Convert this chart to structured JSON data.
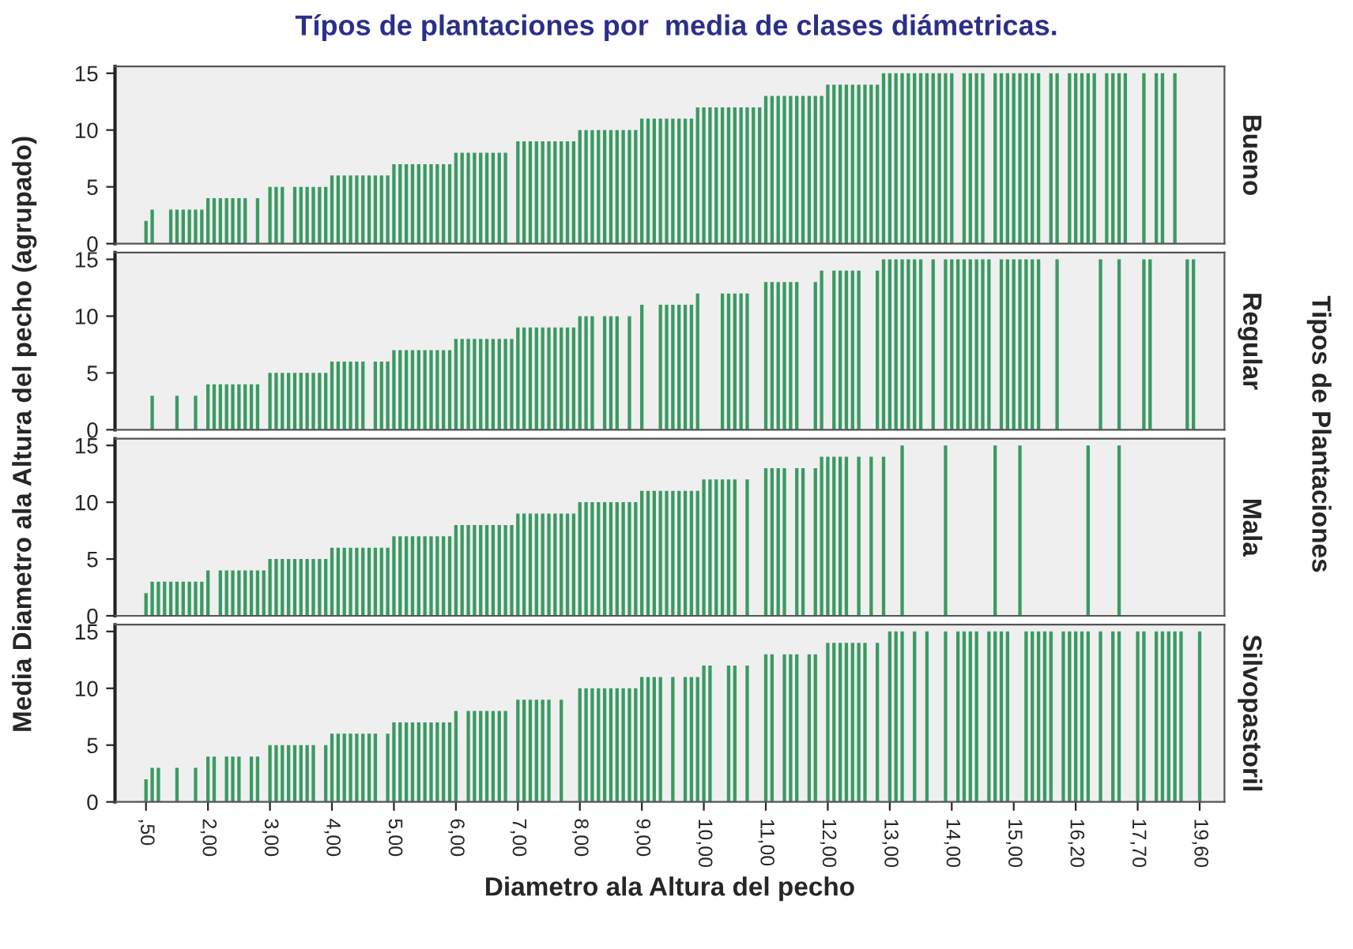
{
  "chart_data": [
    {
      "type": "bar",
      "title": "Típos de plantaciones por  media de clases diámetricas.",
      "ylabel": "Media Diametro ala Altura del pecho (agrupado)",
      "y2label": "Tipos de Plantaciones",
      "annotations": [
        "Bueno"
      ],
      "tick_labels": "y",
      "color": "#3a9a63",
      "ylim": [
        0,
        15.6
      ],
      "yticks": [
        0,
        5,
        10,
        15
      ],
      "grid": false,
      "categories": [
        ",50",
        null,
        null,
        null,
        null,
        null,
        null,
        null,
        null,
        null,
        "2,00",
        null,
        null,
        null,
        null,
        null,
        null,
        null,
        null,
        null,
        "3,00",
        null,
        null,
        null,
        null,
        null,
        null,
        null,
        null,
        null,
        "4,00",
        null,
        null,
        null,
        null,
        null,
        null,
        null,
        null,
        null,
        "5,00",
        null,
        null,
        null,
        null,
        null,
        null,
        null,
        null,
        null,
        "6,00",
        null,
        null,
        null,
        null,
        null,
        null,
        null,
        null,
        null,
        "7,00",
        null,
        null,
        null,
        null,
        null,
        null,
        null,
        null,
        null,
        "8,00",
        null,
        null,
        null,
        null,
        null,
        null,
        null,
        null,
        null,
        "9,00",
        null,
        null,
        null,
        null,
        null,
        null,
        null,
        null,
        null,
        "10,00",
        null,
        null,
        null,
        null,
        null,
        null,
        null,
        null,
        null,
        "11,00",
        null,
        null,
        null,
        null,
        null,
        null,
        null,
        null,
        null,
        "12,00",
        null,
        null,
        null,
        null,
        null,
        null,
        null,
        null,
        null,
        "13,00",
        null,
        null,
        null,
        null,
        null,
        null,
        null,
        null,
        null,
        "14,00",
        null,
        null,
        null,
        null,
        null,
        null,
        null,
        null,
        null,
        "15,00",
        null,
        null,
        null,
        null,
        null,
        null,
        null,
        null,
        null,
        "16,20",
        null,
        null,
        null,
        null,
        null,
        null,
        null,
        null,
        null,
        "17,70",
        null,
        null,
        null,
        null,
        null,
        null,
        null,
        null,
        null,
        "19,60"
      ],
      "values": [
        2,
        3,
        null,
        null,
        3,
        3,
        3,
        3,
        3,
        3,
        4,
        4,
        4,
        4,
        4,
        4,
        4,
        null,
        4,
        null,
        5,
        5,
        5,
        null,
        5,
        5,
        5,
        5,
        5,
        5,
        6,
        6,
        6,
        6,
        6,
        6,
        6,
        6,
        6,
        6,
        7,
        7,
        7,
        7,
        7,
        7,
        7,
        7,
        7,
        7,
        8,
        8,
        8,
        8,
        8,
        8,
        8,
        8,
        8,
        null,
        9,
        9,
        9,
        9,
        9,
        9,
        9,
        9,
        9,
        9,
        10,
        10,
        10,
        10,
        10,
        10,
        10,
        10,
        10,
        10,
        11,
        11,
        11,
        11,
        11,
        11,
        11,
        11,
        11,
        12,
        12,
        12,
        12,
        12,
        12,
        12,
        12,
        12,
        12,
        12,
        13,
        13,
        13,
        13,
        13,
        13,
        13,
        13,
        13,
        13,
        14,
        14,
        14,
        14,
        14,
        14,
        14,
        14,
        14,
        15,
        15,
        15,
        15,
        15,
        15,
        15,
        15,
        15,
        15,
        15,
        15,
        null,
        15,
        15,
        15,
        15,
        null,
        15,
        15,
        15,
        15,
        15,
        15,
        15,
        15,
        null,
        15,
        15,
        null,
        15,
        15,
        15,
        15,
        15,
        null,
        15,
        15,
        15,
        15,
        null,
        null,
        15,
        null,
        15,
        15,
        null,
        15,
        null,
        null,
        null,
        null
      ]
    },
    {
      "type": "bar",
      "annotations": [
        "Regular"
      ],
      "tick_labels": "y",
      "color": "#3a9a63",
      "ylim": [
        0,
        15.6
      ],
      "yticks": [
        0,
        5,
        10,
        15
      ],
      "grid": false,
      "categories": [
        ",50",
        null,
        null,
        null,
        null,
        null,
        null,
        null,
        null,
        null,
        "2,00",
        null,
        null,
        null,
        null,
        null,
        null,
        null,
        null,
        null,
        "3,00",
        null,
        null,
        null,
        null,
        null,
        null,
        null,
        null,
        null,
        "4,00",
        null,
        null,
        null,
        null,
        null,
        null,
        null,
        null,
        null,
        "5,00",
        null,
        null,
        null,
        null,
        null,
        null,
        null,
        null,
        null,
        "6,00",
        null,
        null,
        null,
        null,
        null,
        null,
        null,
        null,
        null,
        "7,00",
        null,
        null,
        null,
        null,
        null,
        null,
        null,
        null,
        null,
        "8,00",
        null,
        null,
        null,
        null,
        null,
        null,
        null,
        null,
        null,
        "9,00",
        null,
        null,
        null,
        null,
        null,
        null,
        null,
        null,
        null,
        "10,00",
        null,
        null,
        null,
        null,
        null,
        null,
        null,
        null,
        null,
        "11,00",
        null,
        null,
        null,
        null,
        null,
        null,
        null,
        null,
        null,
        "12,00",
        null,
        null,
        null,
        null,
        null,
        null,
        null,
        null,
        null,
        "13,00",
        null,
        null,
        null,
        null,
        null,
        null,
        null,
        null,
        null,
        "14,00",
        null,
        null,
        null,
        null,
        null,
        null,
        null,
        null,
        null,
        "15,00",
        null,
        null,
        null,
        null,
        null,
        null,
        null,
        null,
        null,
        "16,20",
        null,
        null,
        null,
        null,
        null,
        null,
        null,
        null,
        null,
        "17,70",
        null,
        null,
        null,
        null,
        null,
        null,
        null,
        null,
        null,
        "19,60"
      ],
      "values": [
        null,
        3,
        null,
        null,
        null,
        3,
        null,
        null,
        3,
        null,
        4,
        4,
        4,
        4,
        4,
        4,
        4,
        4,
        4,
        null,
        5,
        5,
        5,
        5,
        5,
        5,
        5,
        5,
        5,
        5,
        6,
        6,
        6,
        6,
        6,
        6,
        null,
        6,
        6,
        6,
        7,
        7,
        7,
        7,
        7,
        7,
        7,
        7,
        7,
        7,
        8,
        8,
        8,
        8,
        8,
        8,
        8,
        8,
        8,
        8,
        9,
        9,
        9,
        9,
        9,
        9,
        9,
        9,
        9,
        9,
        10,
        10,
        10,
        null,
        10,
        10,
        10,
        null,
        10,
        null,
        11,
        null,
        null,
        11,
        11,
        11,
        11,
        11,
        11,
        12,
        null,
        null,
        null,
        12,
        12,
        12,
        12,
        12,
        null,
        null,
        13,
        13,
        13,
        13,
        13,
        13,
        null,
        null,
        13,
        14,
        null,
        14,
        14,
        14,
        14,
        14,
        null,
        null,
        14,
        15,
        15,
        15,
        15,
        15,
        15,
        15,
        null,
        15,
        null,
        15,
        15,
        15,
        15,
        15,
        15,
        15,
        15,
        null,
        15,
        15,
        15,
        15,
        15,
        15,
        15,
        null,
        null,
        15,
        null,
        null,
        null,
        null,
        null,
        null,
        15,
        null,
        null,
        15,
        null,
        null,
        null,
        15,
        15,
        null,
        null,
        null,
        null,
        null,
        15,
        15,
        null
      ]
    },
    {
      "type": "bar",
      "annotations": [
        "Mala"
      ],
      "tick_labels": "y",
      "color": "#3a9a63",
      "ylim": [
        0,
        15.6
      ],
      "yticks": [
        0,
        5,
        10,
        15
      ],
      "grid": false,
      "categories": [
        ",50",
        null,
        null,
        null,
        null,
        null,
        null,
        null,
        null,
        null,
        "2,00",
        null,
        null,
        null,
        null,
        null,
        null,
        null,
        null,
        null,
        "3,00",
        null,
        null,
        null,
        null,
        null,
        null,
        null,
        null,
        null,
        "4,00",
        null,
        null,
        null,
        null,
        null,
        null,
        null,
        null,
        null,
        "5,00",
        null,
        null,
        null,
        null,
        null,
        null,
        null,
        null,
        null,
        "6,00",
        null,
        null,
        null,
        null,
        null,
        null,
        null,
        null,
        null,
        "7,00",
        null,
        null,
        null,
        null,
        null,
        null,
        null,
        null,
        null,
        "8,00",
        null,
        null,
        null,
        null,
        null,
        null,
        null,
        null,
        null,
        "9,00",
        null,
        null,
        null,
        null,
        null,
        null,
        null,
        null,
        null,
        "10,00",
        null,
        null,
        null,
        null,
        null,
        null,
        null,
        null,
        null,
        "11,00",
        null,
        null,
        null,
        null,
        null,
        null,
        null,
        null,
        null,
        "12,00",
        null,
        null,
        null,
        null,
        null,
        null,
        null,
        null,
        null,
        "13,00",
        null,
        null,
        null,
        null,
        null,
        null,
        null,
        null,
        null,
        "14,00",
        null,
        null,
        null,
        null,
        null,
        null,
        null,
        null,
        null,
        "15,00",
        null,
        null,
        null,
        null,
        null,
        null,
        null,
        null,
        null,
        "16,20",
        null,
        null,
        null,
        null,
        null,
        null,
        null,
        null,
        null,
        "17,70",
        null,
        null,
        null,
        null,
        null,
        null,
        null,
        null,
        null,
        "19,60"
      ],
      "values": [
        2,
        3,
        3,
        3,
        3,
        3,
        3,
        3,
        3,
        3,
        4,
        null,
        4,
        4,
        4,
        4,
        4,
        4,
        4,
        4,
        5,
        5,
        5,
        5,
        5,
        5,
        5,
        5,
        5,
        5,
        6,
        6,
        6,
        6,
        6,
        6,
        6,
        6,
        6,
        6,
        7,
        7,
        7,
        7,
        7,
        7,
        7,
        7,
        7,
        7,
        8,
        8,
        8,
        8,
        8,
        8,
        8,
        8,
        8,
        8,
        9,
        9,
        9,
        9,
        9,
        9,
        9,
        9,
        9,
        9,
        10,
        10,
        10,
        10,
        10,
        10,
        10,
        10,
        10,
        10,
        11,
        11,
        11,
        11,
        11,
        11,
        11,
        11,
        11,
        11,
        12,
        12,
        12,
        12,
        12,
        12,
        null,
        12,
        null,
        null,
        13,
        13,
        13,
        13,
        null,
        13,
        13,
        null,
        13,
        14,
        14,
        14,
        14,
        14,
        null,
        14,
        null,
        14,
        null,
        14,
        null,
        null,
        15,
        null,
        null,
        null,
        null,
        null,
        null,
        15,
        null,
        null,
        null,
        null,
        null,
        null,
        null,
        15,
        null,
        null,
        null,
        15,
        null,
        null,
        null,
        null,
        null,
        null,
        null,
        null,
        null,
        null,
        15,
        null,
        null,
        null,
        null,
        15,
        null,
        null,
        null,
        null,
        null,
        null,
        null,
        null,
        null,
        null,
        null,
        null,
        null
      ]
    },
    {
      "type": "bar",
      "xlabel": "Diametro ala Altura del pecho",
      "annotations": [
        "Silvopastoril"
      ],
      "color": "#3a9a63",
      "ylim": [
        0,
        15.6
      ],
      "yticks": [
        0,
        5,
        10,
        15
      ],
      "grid": false,
      "categories": [
        ",50",
        null,
        null,
        null,
        null,
        null,
        null,
        null,
        null,
        null,
        "2,00",
        null,
        null,
        null,
        null,
        null,
        null,
        null,
        null,
        null,
        "3,00",
        null,
        null,
        null,
        null,
        null,
        null,
        null,
        null,
        null,
        "4,00",
        null,
        null,
        null,
        null,
        null,
        null,
        null,
        null,
        null,
        "5,00",
        null,
        null,
        null,
        null,
        null,
        null,
        null,
        null,
        null,
        "6,00",
        null,
        null,
        null,
        null,
        null,
        null,
        null,
        null,
        null,
        "7,00",
        null,
        null,
        null,
        null,
        null,
        null,
        null,
        null,
        null,
        "8,00",
        null,
        null,
        null,
        null,
        null,
        null,
        null,
        null,
        null,
        "9,00",
        null,
        null,
        null,
        null,
        null,
        null,
        null,
        null,
        null,
        "10,00",
        null,
        null,
        null,
        null,
        null,
        null,
        null,
        null,
        null,
        "11,00",
        null,
        null,
        null,
        null,
        null,
        null,
        null,
        null,
        null,
        "12,00",
        null,
        null,
        null,
        null,
        null,
        null,
        null,
        null,
        null,
        "13,00",
        null,
        null,
        null,
        null,
        null,
        null,
        null,
        null,
        null,
        "14,00",
        null,
        null,
        null,
        null,
        null,
        null,
        null,
        null,
        null,
        "15,00",
        null,
        null,
        null,
        null,
        null,
        null,
        null,
        null,
        null,
        "16,20",
        null,
        null,
        null,
        null,
        null,
        null,
        null,
        null,
        null,
        "17,70",
        null,
        null,
        null,
        null,
        null,
        null,
        null,
        null,
        null,
        "19,60"
      ],
      "values": [
        2,
        3,
        3,
        null,
        null,
        3,
        null,
        null,
        3,
        null,
        4,
        4,
        null,
        4,
        4,
        4,
        null,
        4,
        4,
        null,
        5,
        5,
        5,
        5,
        5,
        5,
        5,
        5,
        null,
        5,
        6,
        6,
        6,
        6,
        6,
        6,
        6,
        6,
        null,
        6,
        7,
        7,
        7,
        7,
        7,
        7,
        7,
        7,
        7,
        7,
        8,
        null,
        8,
        8,
        8,
        8,
        8,
        8,
        8,
        null,
        9,
        9,
        9,
        9,
        9,
        9,
        null,
        9,
        null,
        null,
        10,
        10,
        10,
        10,
        10,
        10,
        10,
        10,
        10,
        10,
        11,
        11,
        11,
        11,
        null,
        11,
        null,
        11,
        11,
        11,
        12,
        12,
        null,
        null,
        12,
        12,
        null,
        12,
        null,
        null,
        13,
        13,
        null,
        13,
        13,
        13,
        null,
        13,
        13,
        null,
        14,
        14,
        14,
        14,
        14,
        14,
        14,
        null,
        14,
        null,
        15,
        15,
        15,
        null,
        15,
        null,
        15,
        null,
        null,
        15,
        null,
        15,
        15,
        15,
        15,
        null,
        15,
        15,
        15,
        15,
        null,
        null,
        15,
        15,
        15,
        15,
        15,
        null,
        15,
        15,
        15,
        15,
        15,
        null,
        15,
        null,
        15,
        15,
        null,
        null,
        15,
        15,
        null,
        15,
        15,
        15,
        15,
        15,
        null,
        null,
        15
      ]
    }
  ]
}
